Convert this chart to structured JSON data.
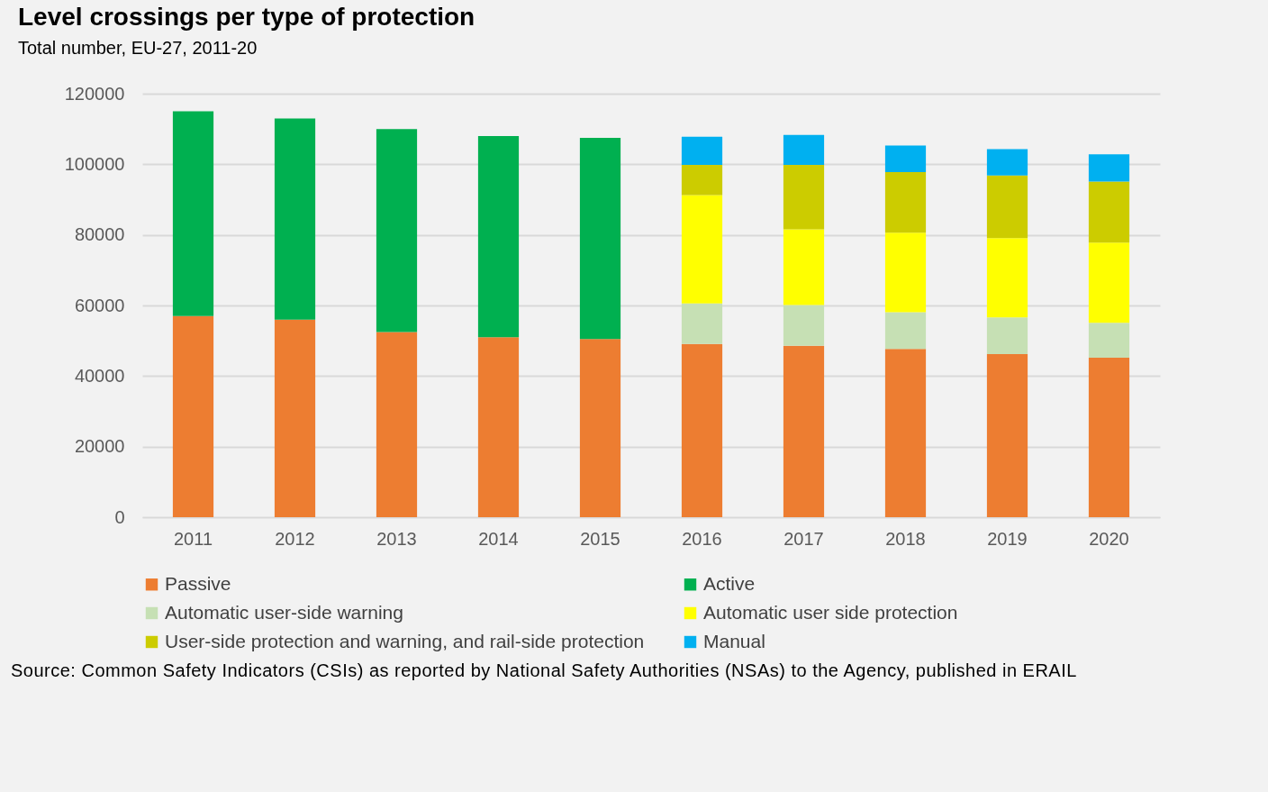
{
  "chart_data": {
    "type": "bar",
    "title": "Level crossings per type of protection",
    "subtitle": "Total number, EU-27, 2011-20",
    "categories": [
      "2011",
      "2012",
      "2013",
      "2014",
      "2015",
      "2016",
      "2017",
      "2018",
      "2019",
      "2020"
    ],
    "stacked": true,
    "ylim": [
      0,
      120000
    ],
    "yticks": [
      0,
      20000,
      40000,
      60000,
      80000,
      100000,
      120000
    ],
    "grid": "y",
    "legend": "bottom",
    "series": [
      {
        "name": "Passive",
        "color": "#ed7d31",
        "values": [
          57000,
          56000,
          52500,
          51000,
          50500,
          49100,
          48600,
          47700,
          46200,
          45200
        ]
      },
      {
        "name": "Active",
        "color": "#00b050",
        "values": [
          58000,
          57000,
          57500,
          57000,
          57000,
          null,
          null,
          null,
          null,
          null
        ]
      },
      {
        "name": "Automatic user-side warning",
        "color": "#c6e0b4",
        "values": [
          null,
          null,
          null,
          null,
          null,
          11500,
          11500,
          10400,
          10400,
          9900
        ]
      },
      {
        "name": "Automatic user side protection",
        "color": "#ffff00",
        "values": [
          null,
          null,
          null,
          null,
          null,
          30700,
          21500,
          22500,
          22500,
          22700
        ]
      },
      {
        "name": "User-side protection and warning, and rail-side protection",
        "color": "#cccc00",
        "values": [
          null,
          null,
          null,
          null,
          null,
          8500,
          18200,
          17200,
          17700,
          17300
        ]
      },
      {
        "name": "Manual",
        "color": "#00b0f0",
        "values": [
          null,
          null,
          null,
          null,
          null,
          8000,
          8500,
          7500,
          7500,
          7700
        ]
      }
    ],
    "annotations": [
      "Source: Common Safety Indicators (CSIs) as reported by National Safety Authorities (NSAs) to the Agency, published in ERAIL"
    ]
  }
}
